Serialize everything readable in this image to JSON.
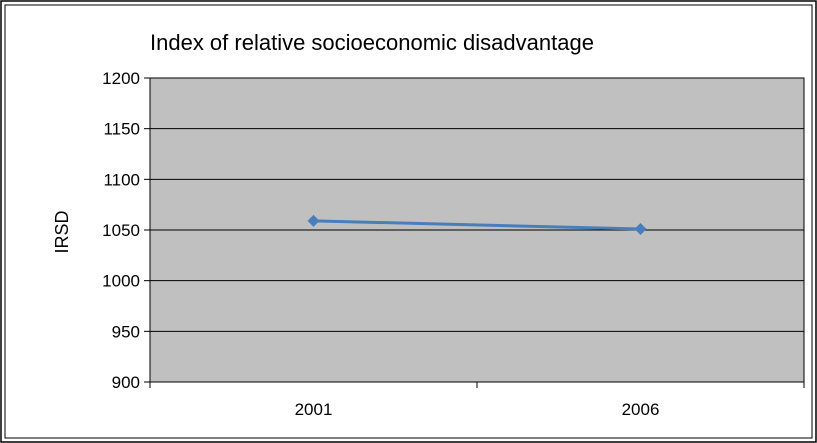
{
  "chart_data": {
    "type": "line",
    "title": "Index of relative socioeconomic disadvantage",
    "xlabel": "",
    "ylabel": "IRSD",
    "categories": [
      "2001",
      "2006"
    ],
    "series": [
      {
        "values": [
          1059,
          1051
        ]
      }
    ],
    "ylim": [
      900,
      1200
    ],
    "yticks": [
      900,
      950,
      1000,
      1050,
      1100,
      1150,
      1200
    ],
    "yticks_labels": [
      "900",
      "950",
      "1000",
      "1050",
      "1100",
      "1150",
      "1200"
    ],
    "grid": true,
    "legend": "none",
    "colors": {
      "plot_background": "#c0c0c0",
      "series_line": "#4a7ebb",
      "gridline": "#000000",
      "frame": "#000000"
    }
  }
}
